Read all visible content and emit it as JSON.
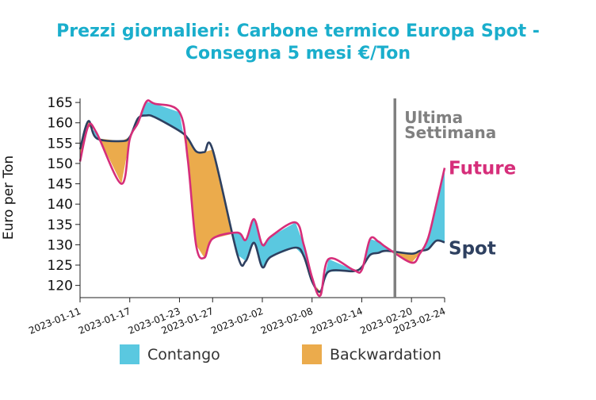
{
  "chart_data": {
    "type": "line",
    "title_lines": [
      "Prezzi giornalieri: Carbone termico Europa Spot -",
      "Consegna 5 mesi €/Ton"
    ],
    "ylabel": "Euro per Ton",
    "xlabel": "",
    "ylim": [
      117,
      166
    ],
    "yticks": [
      120,
      125,
      130,
      135,
      140,
      145,
      150,
      155,
      160,
      165
    ],
    "xlim": [
      "2023-01-11",
      "2023-02-24"
    ],
    "xticks": [
      "2023-01-11",
      "2023-01-17",
      "2023-01-23",
      "2023-01-27",
      "2023-02-02",
      "2023-02-08",
      "2023-02-14",
      "2023-02-20",
      "2023-02-24"
    ],
    "x": [
      "2023-01-11",
      "2023-01-12",
      "2023-01-13",
      "2023-01-16",
      "2023-01-17",
      "2023-01-18",
      "2023-01-19",
      "2023-01-20",
      "2023-01-23",
      "2023-01-24",
      "2023-01-25",
      "2023-01-26",
      "2023-01-27",
      "2023-01-30",
      "2023-01-31",
      "2023-02-01",
      "2023-02-02",
      "2023-02-03",
      "2023-02-06",
      "2023-02-07",
      "2023-02-08",
      "2023-02-09",
      "2023-02-10",
      "2023-02-13",
      "2023-02-14",
      "2023-02-15",
      "2023-02-16",
      "2023-02-17",
      "2023-02-20",
      "2023-02-21",
      "2023-02-22",
      "2023-02-23",
      "2023-02-24"
    ],
    "series": [
      {
        "name": "Future",
        "color": "#d62e7a",
        "values": [
          150.5,
          159.2,
          157.5,
          145.0,
          156.0,
          160.0,
          165.2,
          164.7,
          162.6,
          151.0,
          130.0,
          126.8,
          131.5,
          133.0,
          131.2,
          136.3,
          130.0,
          132.0,
          135.5,
          130.0,
          122.0,
          117.5,
          126.5,
          123.8,
          123.8,
          131.4,
          130.8,
          129.3,
          125.6,
          127.8,
          131.6,
          140.0,
          148.9
        ]
      },
      {
        "name": "Spot",
        "color": "#2e4060",
        "values": [
          153.5,
          160.4,
          156.2,
          155.5,
          156.5,
          161.1,
          161.8,
          161.4,
          158.0,
          156.2,
          153.0,
          152.8,
          153.4,
          127.5,
          126.0,
          130.5,
          124.5,
          127.0,
          129.3,
          127.2,
          121.0,
          118.5,
          123.4,
          123.5,
          124.5,
          127.5,
          128.0,
          128.5,
          127.8,
          128.5,
          128.9,
          131.0,
          130.6
        ]
      }
    ],
    "fills": [
      {
        "name": "Contango",
        "color": "#5ac8e0"
      },
      {
        "name": "Backwardation",
        "color": "#ebab4c"
      }
    ],
    "annotation": {
      "lines": [
        "Ultima",
        "Settimana"
      ],
      "x": "2023-02-18",
      "color": "#808080"
    },
    "grid": false,
    "legend_position": "bottom"
  }
}
